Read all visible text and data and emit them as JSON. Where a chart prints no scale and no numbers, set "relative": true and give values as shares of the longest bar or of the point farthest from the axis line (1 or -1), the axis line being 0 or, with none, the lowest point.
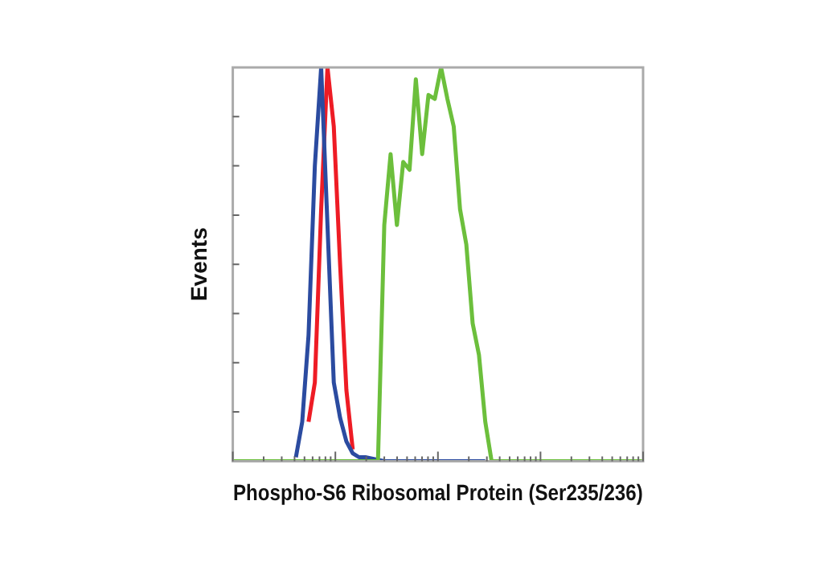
{
  "chart_data": {
    "type": "line",
    "relative": true,
    "xlabel": "Phospho-S6 Ribosomal Protein (Ser235/236)",
    "ylabel": "Events",
    "categories": [
      null,
      null,
      null,
      null,
      null,
      null,
      null,
      null,
      null,
      null,
      null,
      null,
      null,
      null,
      null,
      null,
      null,
      null,
      null,
      null,
      null,
      null,
      null,
      null,
      null,
      null,
      null,
      null,
      null,
      null,
      null,
      null,
      null,
      null,
      null,
      null,
      null,
      null,
      null,
      null,
      null,
      null,
      null,
      null,
      null,
      null,
      null,
      null,
      null,
      null,
      null,
      null,
      null,
      null,
      null,
      null,
      null,
      null,
      null,
      null,
      null,
      null,
      null,
      null,
      null,
      null
    ],
    "series": [
      {
        "color": "#ee1c25",
        "values": [
          null,
          null,
          null,
          null,
          null,
          null,
          null,
          null,
          null,
          null,
          null,
          null,
          0.1,
          0.2,
          0.64,
          1,
          0.85,
          0.5,
          0.18,
          0.03,
          null,
          null,
          null,
          null,
          null,
          null,
          null,
          null,
          null,
          null,
          null,
          null,
          null,
          null,
          null,
          null,
          null,
          null,
          null,
          null,
          null,
          null,
          null,
          null,
          null,
          null,
          null,
          null,
          null,
          null,
          null,
          null,
          null,
          null,
          null,
          null,
          null,
          null,
          null,
          null,
          null,
          null,
          null,
          null,
          null,
          null
        ]
      },
      {
        "color": "#2b4ba0",
        "values": [
          null,
          null,
          null,
          null,
          null,
          null,
          null,
          null,
          null,
          null,
          0.01,
          0.1,
          0.32,
          0.75,
          1,
          0.6,
          0.2,
          0.11,
          0.05,
          0.02,
          0.01,
          0.01,
          null,
          null,
          0,
          0,
          0,
          0,
          0,
          0,
          0,
          0,
          0,
          0,
          0,
          0,
          0,
          0,
          0,
          0,
          0,
          null,
          null,
          null,
          null,
          null,
          null,
          null,
          null,
          null,
          null,
          null,
          null,
          null,
          null,
          null,
          null,
          null,
          null,
          null,
          null,
          null,
          null,
          null,
          null,
          null
        ]
      },
      {
        "color": "#6cbf3c",
        "values": [
          0,
          0,
          0,
          0,
          0,
          0,
          0,
          0,
          0,
          0,
          0,
          0,
          0,
          0,
          0,
          0,
          0,
          0,
          0,
          0,
          0,
          0,
          0,
          0,
          0.6,
          0.78,
          0.6,
          0.76,
          0.74,
          0.97,
          0.78,
          0.93,
          0.92,
          1,
          0.92,
          0.85,
          0.64,
          0.55,
          0.35,
          0.27,
          0.1,
          0,
          0,
          0,
          0,
          0,
          0,
          0,
          0,
          0,
          0,
          0,
          0,
          0,
          0,
          0,
          0,
          0,
          0,
          0,
          0,
          0,
          0,
          0,
          0,
          0
        ]
      }
    ]
  }
}
